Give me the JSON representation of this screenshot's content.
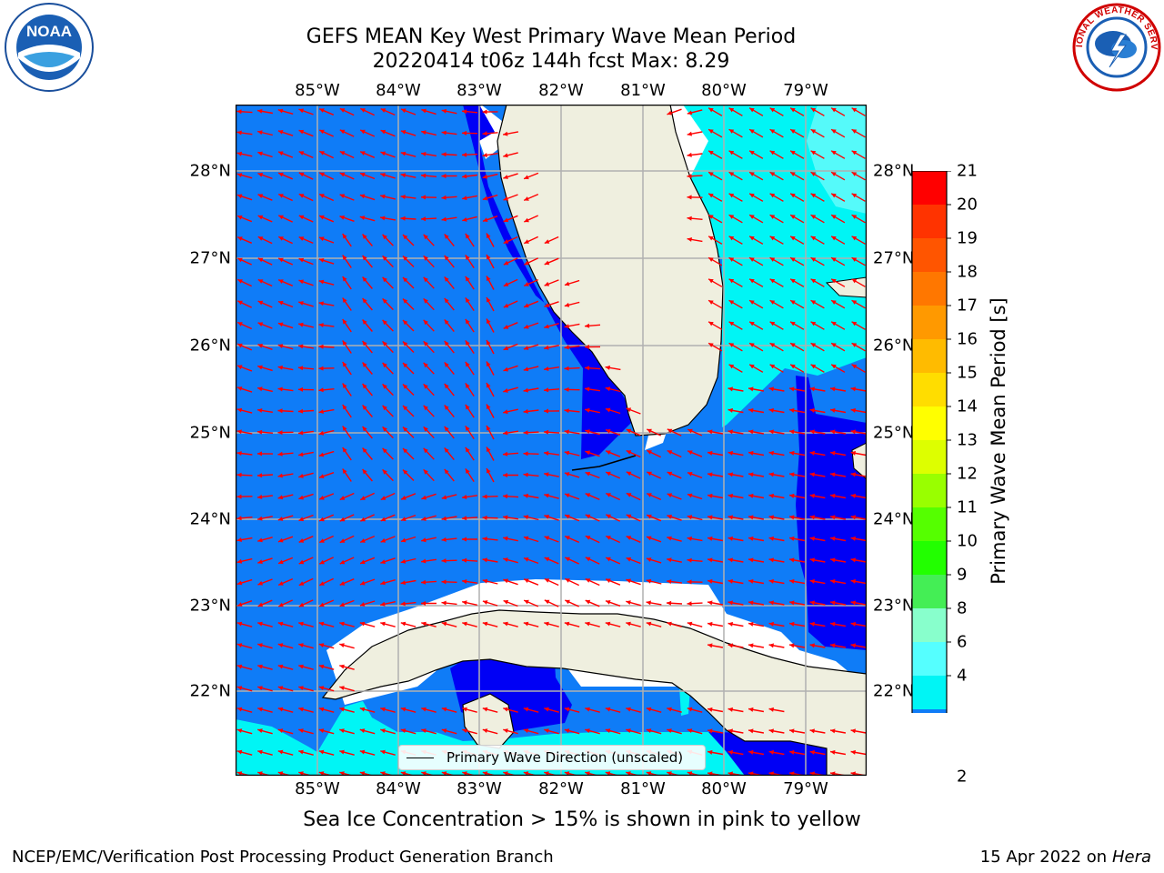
{
  "title": {
    "line1": "GEFS MEAN Key West Primary Wave Mean Period",
    "line2": "20220414 t06z 144h fcst   Max: 8.29"
  },
  "map": {
    "lon_labels": [
      "85°W",
      "84°W",
      "83°W",
      "82°W",
      "81°W",
      "80°W",
      "79°W"
    ],
    "lat_labels": [
      "28°N",
      "27°N",
      "26°N",
      "25°N",
      "24°N",
      "23°N",
      "22°N"
    ],
    "colors": {
      "deep_blue": "#0000f5",
      "mid_blue": "#0f7cf7",
      "cyan": "#00f5f5",
      "light_cyan": "#55fafa",
      "land": "#efefdf",
      "arrow": "#ff0000",
      "grid": "#b0b0b0"
    }
  },
  "colorbar": {
    "title": "Primary Wave Mean Period [s]",
    "labels": [
      "21",
      "20",
      "19",
      "18",
      "17",
      "16",
      "15",
      "14",
      "13",
      "12",
      "11",
      "10",
      "9",
      "8",
      "6",
      "4",
      "2"
    ],
    "colors": [
      "#ff0000",
      "#ff3300",
      "#ff5500",
      "#ff7700",
      "#ff9900",
      "#ffbb00",
      "#ffdd00",
      "#ffff00",
      "#ddff00",
      "#99ff00",
      "#55ff00",
      "#22ff00",
      "#44ee55",
      "#88ffcc",
      "#55ffff",
      "#00f5f5",
      "#0f7cf7",
      "#0000f5"
    ]
  },
  "legend": {
    "label": "Primary Wave Direction (unscaled)"
  },
  "subcaption": "Sea Ice Concentration > 15% is shown in pink to yellow",
  "footer": {
    "left": "NCEP/EMC/Verification Post Processing Product Generation Branch",
    "right_date": "15 Apr 2022 on",
    "right_host": "Hera"
  },
  "logos": {
    "noaa_text": "NOAA",
    "nws_text": "NATIONAL WEATHER SERVICE"
  }
}
